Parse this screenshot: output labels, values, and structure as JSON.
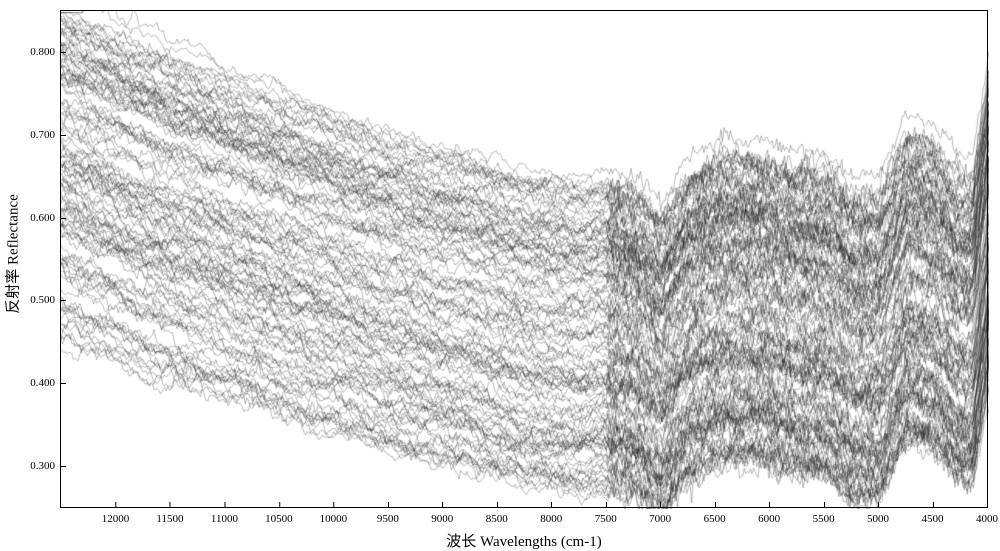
{
  "chart": {
    "type": "line-ensemble",
    "seed": 20240611,
    "n_curves": 120,
    "line_color": "#1a1a1a",
    "line_width": 0.35,
    "background_color": "#ffffff",
    "border_color": "#000000",
    "x_axis": {
      "label": "波长 Wavelengths (cm-1)",
      "label_fontsize": 15,
      "lim": [
        12500,
        4000
      ],
      "ticks": [
        12000,
        11500,
        11000,
        10500,
        10000,
        9500,
        9000,
        8500,
        8000,
        7500,
        7000,
        6500,
        6000,
        5500,
        5000,
        4500,
        4000
      ],
      "tick_fontsize": 11,
      "reversed": true
    },
    "y_axis": {
      "label": "反射率 Reflectance",
      "label_fontsize": 15,
      "lim": [
        0.25,
        0.85
      ],
      "ticks": [
        0.3,
        0.4,
        0.5,
        0.6,
        0.7,
        0.8
      ],
      "tick_labels": [
        "0.300",
        "0.400",
        "0.500",
        "0.600",
        "0.700",
        "0.800"
      ],
      "tick_fontsize": 11
    },
    "base_profile": {
      "x": [
        12500,
        12000,
        11500,
        11000,
        10500,
        10000,
        9500,
        9000,
        8750,
        8500,
        8250,
        8000,
        7750,
        7500,
        7250,
        7000,
        6750,
        6500,
        6250,
        6000,
        5750,
        5500,
        5250,
        5000,
        4750,
        4500,
        4300,
        4150,
        4000
      ],
      "y": [
        0.56,
        0.53,
        0.5,
        0.475,
        0.45,
        0.425,
        0.4,
        0.38,
        0.375,
        0.362,
        0.352,
        0.347,
        0.342,
        0.345,
        0.335,
        0.303,
        0.355,
        0.375,
        0.38,
        0.373,
        0.362,
        0.358,
        0.325,
        0.328,
        0.405,
        0.39,
        0.352,
        0.345,
        0.48
      ]
    },
    "offset_range": [
      -0.07,
      0.3
    ],
    "amplitude_range": [
      0.78,
      1.2
    ],
    "noise_sigma": 0.007,
    "outlier_curves": {
      "count": 3,
      "offset_range": [
        0.24,
        0.32
      ],
      "noise_sigma": 0.005
    }
  }
}
